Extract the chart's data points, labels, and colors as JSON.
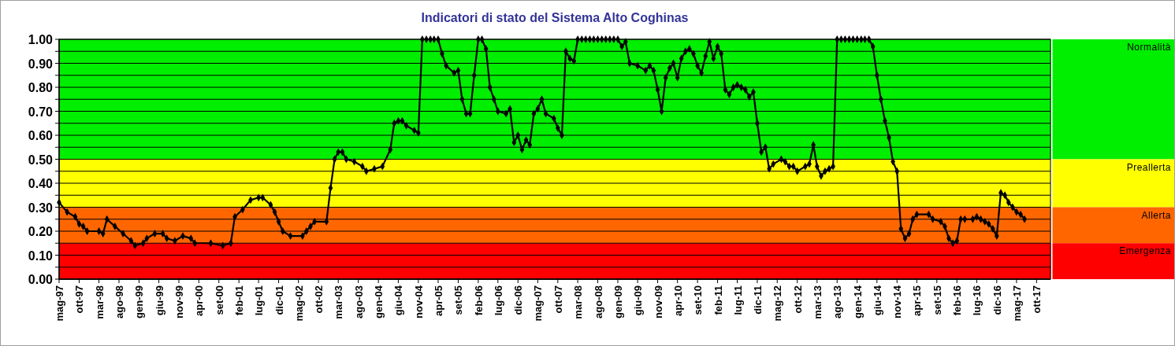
{
  "chart_data": {
    "type": "line",
    "title": "Indicatori di stato del Sistema Alto Coghinas",
    "xlim": [
      "1997-05",
      "2018-01-15"
    ],
    "ylim": [
      0,
      1
    ],
    "yticks": [
      {
        "value": 0,
        "label": "0.00"
      },
      {
        "value": 0.05,
        "label": null
      },
      {
        "value": 0.1,
        "label": "0.10"
      },
      {
        "value": 0.15,
        "label": null
      },
      {
        "value": 0.2,
        "label": "0.20"
      },
      {
        "value": 0.25,
        "label": null
      },
      {
        "value": 0.3,
        "label": "0.30"
      },
      {
        "value": 0.35,
        "label": null
      },
      {
        "value": 0.4,
        "label": "0.40"
      },
      {
        "value": 0.45,
        "label": null
      },
      {
        "value": 0.5,
        "label": "0.50"
      },
      {
        "value": 0.55,
        "label": null
      },
      {
        "value": 0.6,
        "label": "0.60"
      },
      {
        "value": 0.65,
        "label": null
      },
      {
        "value": 0.7,
        "label": "0.70"
      },
      {
        "value": 0.75,
        "label": null
      },
      {
        "value": 0.8,
        "label": "0.80"
      },
      {
        "value": 0.85,
        "label": null
      },
      {
        "value": 0.9,
        "label": "0.90"
      },
      {
        "value": 0.95,
        "label": null
      },
      {
        "value": 1,
        "label": "1.00"
      }
    ],
    "xticks": [
      {
        "value": "1997-05",
        "label": "mag-97"
      },
      {
        "value": "1997-10",
        "label": "ott-97"
      },
      {
        "value": "1998-03",
        "label": "mar-98"
      },
      {
        "value": "1998-08",
        "label": "ago-98"
      },
      {
        "value": "1999-01",
        "label": "gen-99"
      },
      {
        "value": "1999-06",
        "label": "giu-99"
      },
      {
        "value": "1999-11",
        "label": "nov-99"
      },
      {
        "value": "2000-04",
        "label": "apr-00"
      },
      {
        "value": "2000-09",
        "label": "set-00"
      },
      {
        "value": "2001-02",
        "label": "feb-01"
      },
      {
        "value": "2001-07",
        "label": "lug-01"
      },
      {
        "value": "2001-12",
        "label": "dic-01"
      },
      {
        "value": "2002-05",
        "label": "mag-02"
      },
      {
        "value": "2002-10",
        "label": "ott-02"
      },
      {
        "value": "2003-03",
        "label": "mar-03"
      },
      {
        "value": "2003-08",
        "label": "ago-03"
      },
      {
        "value": "2004-01",
        "label": "gen-04"
      },
      {
        "value": "2004-06",
        "label": "giu-04"
      },
      {
        "value": "2004-11",
        "label": "nov-04"
      },
      {
        "value": "2005-04",
        "label": "apr-05"
      },
      {
        "value": "2005-09",
        "label": "set-05"
      },
      {
        "value": "2006-02",
        "label": "feb-06"
      },
      {
        "value": "2006-07",
        "label": "lug-06"
      },
      {
        "value": "2006-12",
        "label": "dic-06"
      },
      {
        "value": "2007-05",
        "label": "mag-07"
      },
      {
        "value": "2007-10",
        "label": "ott-07"
      },
      {
        "value": "2008-03",
        "label": "mar-08"
      },
      {
        "value": "2008-08",
        "label": "ago-08"
      },
      {
        "value": "2009-01",
        "label": "gen-09"
      },
      {
        "value": "2009-06",
        "label": "giu-09"
      },
      {
        "value": "2009-11",
        "label": "nov-09"
      },
      {
        "value": "2010-04",
        "label": "apr-10"
      },
      {
        "value": "2010-09",
        "label": "set-10"
      },
      {
        "value": "2011-02",
        "label": "feb-11"
      },
      {
        "value": "2011-07",
        "label": "lug-11"
      },
      {
        "value": "2011-12",
        "label": "dic-11"
      },
      {
        "value": "2012-05",
        "label": "mag-12"
      },
      {
        "value": "2012-10",
        "label": "ott-12"
      },
      {
        "value": "2013-03",
        "label": "mar-13"
      },
      {
        "value": "2013-08",
        "label": "ago-13"
      },
      {
        "value": "2014-01",
        "label": "gen-14"
      },
      {
        "value": "2014-06",
        "label": "giu-14"
      },
      {
        "value": "2014-11",
        "label": "nov-14"
      },
      {
        "value": "2015-04",
        "label": "apr-15"
      },
      {
        "value": "2015-09",
        "label": "set-15"
      },
      {
        "value": "2016-02",
        "label": "feb-16"
      },
      {
        "value": "2016-07",
        "label": "lug-16"
      },
      {
        "value": "2016-12",
        "label": "dic-16"
      },
      {
        "value": "2017-05",
        "label": "mag-17"
      },
      {
        "value": "2017-10",
        "label": "ott-17"
      }
    ],
    "grid": "y",
    "marker": "diamond",
    "line_style": "solid",
    "bands": [
      {
        "axis": "y",
        "from": 0.5,
        "to": 1,
        "label": "Normalità",
        "color": "#00ee00"
      },
      {
        "axis": "y",
        "from": 0.3,
        "to": 0.5,
        "label": "Preallerta",
        "color": "#ffff00"
      },
      {
        "axis": "y",
        "from": 0.15,
        "to": 0.3,
        "label": "Allerta",
        "color": "#ff6600"
      },
      {
        "axis": "y",
        "from": 0,
        "to": 0.15,
        "label": "Emergenza",
        "color": "#ff0000"
      }
    ],
    "series": [
      {
        "color": "#000000",
        "x": [
          "1997-05",
          "1997-07",
          "1997-09",
          "1997-10",
          "1997-11",
          "1997-12",
          "1998-03",
          "1998-04",
          "1998-05",
          "1998-07",
          "1998-09",
          "1998-11",
          "1998-12",
          "1999-02",
          "1999-03",
          "1999-05",
          "1999-07",
          "1999-08",
          "1999-10",
          "1999-12",
          "2000-02",
          "2000-03",
          "2000-07",
          "2000-10",
          "2000-12",
          "2001-01",
          "2001-03",
          "2001-05",
          "2001-07",
          "2001-08",
          "2001-10",
          "2001-11",
          "2001-12",
          "2002-01",
          "2002-03",
          "2002-06",
          "2002-07",
          "2002-08",
          "2002-09",
          "2002-12",
          "2003-01",
          "2003-02",
          "2003-03",
          "2003-04",
          "2003-05",
          "2003-07",
          "2003-09",
          "2003-10",
          "2003-12",
          "2004-02",
          "2004-04",
          "2004-05",
          "2004-06",
          "2004-07",
          "2004-08",
          "2004-10",
          "2004-11",
          "2004-12",
          "2005-01",
          "2005-02",
          "2005-03",
          "2005-04",
          "2005-05",
          "2005-06",
          "2005-08",
          "2005-09",
          "2005-10",
          "2005-11",
          "2005-12",
          "2006-01",
          "2006-02",
          "2006-03",
          "2006-04",
          "2006-05",
          "2006-06",
          "2006-07",
          "2006-09",
          "2006-10",
          "2006-11",
          "2006-12",
          "2007-01",
          "2007-02",
          "2007-03",
          "2007-04",
          "2007-05",
          "2007-06",
          "2007-07",
          "2007-09",
          "2007-10",
          "2007-11",
          "2007-12",
          "2008-01",
          "2008-02",
          "2008-03",
          "2008-04",
          "2008-05",
          "2008-06",
          "2008-07",
          "2008-08",
          "2008-09",
          "2008-10",
          "2008-11",
          "2008-12",
          "2009-01",
          "2009-02",
          "2009-03",
          "2009-04",
          "2009-06",
          "2009-08",
          "2009-09",
          "2009-10",
          "2009-11",
          "2009-12",
          "2010-01",
          "2010-02",
          "2010-03",
          "2010-04",
          "2010-05",
          "2010-06",
          "2010-07",
          "2010-08",
          "2010-09",
          "2010-10",
          "2010-11",
          "2010-12",
          "2011-01",
          "2011-02",
          "2011-03",
          "2011-04",
          "2011-05",
          "2011-06",
          "2011-07",
          "2011-08",
          "2011-09",
          "2011-10",
          "2011-11",
          "2011-12",
          "2012-01",
          "2012-02",
          "2012-03",
          "2012-04",
          "2012-06",
          "2012-07",
          "2012-08",
          "2012-09",
          "2012-10",
          "2012-12",
          "2013-01",
          "2013-02",
          "2013-03",
          "2013-04",
          "2013-05",
          "2013-06",
          "2013-07",
          "2013-08",
          "2013-09",
          "2013-10",
          "2013-11",
          "2013-12",
          "2014-01",
          "2014-02",
          "2014-03",
          "2014-04",
          "2014-05",
          "2014-06",
          "2014-07",
          "2014-08",
          "2014-09",
          "2014-10",
          "2014-11",
          "2014-12",
          "2015-01",
          "2015-02",
          "2015-03",
          "2015-04",
          "2015-07",
          "2015-08",
          "2015-10",
          "2015-11",
          "2015-12",
          "2016-01",
          "2016-02",
          "2016-03",
          "2016-04",
          "2016-06",
          "2016-07",
          "2016-08",
          "2016-09",
          "2016-10",
          "2016-11",
          "2016-12",
          "2017-01",
          "2017-02",
          "2017-03",
          "2017-04",
          "2017-05",
          "2017-06",
          "2017-07"
        ],
        "values": [
          0.32,
          0.28,
          0.26,
          0.23,
          0.22,
          0.2,
          0.2,
          0.19,
          0.25,
          0.22,
          0.19,
          0.16,
          0.14,
          0.15,
          0.17,
          0.19,
          0.19,
          0.17,
          0.16,
          0.18,
          0.17,
          0.15,
          0.15,
          0.14,
          0.15,
          0.26,
          0.29,
          0.33,
          0.34,
          0.34,
          0.31,
          0.28,
          0.24,
          0.2,
          0.18,
          0.18,
          0.2,
          0.22,
          0.24,
          0.24,
          0.38,
          0.5,
          0.53,
          0.53,
          0.5,
          0.49,
          0.47,
          0.45,
          0.46,
          0.47,
          0.54,
          0.65,
          0.66,
          0.66,
          0.64,
          0.62,
          0.61,
          1,
          1,
          1,
          1,
          1,
          0.94,
          0.89,
          0.86,
          0.87,
          0.75,
          0.69,
          0.69,
          0.85,
          1,
          1,
          0.96,
          0.8,
          0.75,
          0.7,
          0.69,
          0.71,
          0.57,
          0.6,
          0.54,
          0.58,
          0.56,
          0.69,
          0.71,
          0.75,
          0.69,
          0.67,
          0.63,
          0.6,
          0.95,
          0.92,
          0.91,
          1,
          1,
          1,
          1,
          1,
          1,
          1,
          1,
          1,
          1,
          1,
          0.97,
          0.99,
          0.9,
          0.89,
          0.87,
          0.89,
          0.87,
          0.79,
          0.7,
          0.84,
          0.88,
          0.9,
          0.84,
          0.92,
          0.95,
          0.96,
          0.94,
          0.89,
          0.86,
          0.93,
          0.99,
          0.92,
          0.97,
          0.94,
          0.79,
          0.77,
          0.8,
          0.81,
          0.8,
          0.79,
          0.76,
          0.78,
          0.65,
          0.53,
          0.55,
          0.46,
          0.48,
          0.5,
          0.49,
          0.47,
          0.47,
          0.45,
          0.47,
          0.48,
          0.56,
          0.47,
          0.43,
          0.45,
          0.46,
          0.47,
          1,
          1,
          1,
          1,
          1,
          1,
          1,
          1,
          1,
          0.97,
          0.85,
          0.75,
          0.66,
          0.59,
          0.49,
          0.45,
          0.21,
          0.17,
          0.19,
          0.25,
          0.27,
          0.27,
          0.25,
          0.24,
          0.22,
          0.17,
          0.15,
          0.16,
          0.25,
          0.25,
          0.25,
          0.26,
          0.25,
          0.24,
          0.23,
          0.21,
          0.18,
          0.36,
          0.35,
          0.32,
          0.3,
          0.28,
          0.27,
          0.25
        ]
      }
    ]
  }
}
